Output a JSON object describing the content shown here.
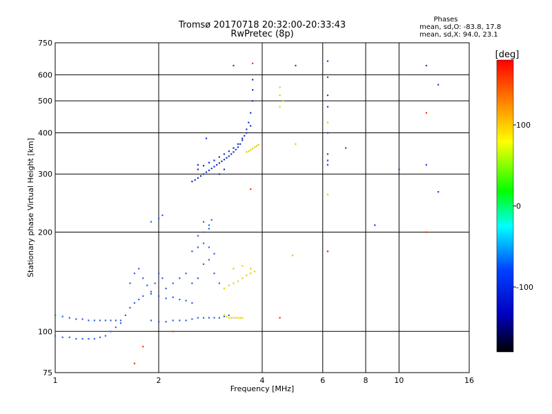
{
  "chart_data": {
    "type": "scatter",
    "title": "Tromsø 20170718 20:32:00-20:33:43",
    "subtitle": "RwPretec (8p)",
    "xlabel": "Frequency [MHz]",
    "ylabel": "Stationary phase Virtual Height [km]",
    "x_scale": "log",
    "y_scale": "log",
    "xlim": [
      1,
      16
    ],
    "ylim": [
      75,
      750
    ],
    "x_ticks": [
      1,
      2,
      4,
      6,
      8,
      10,
      16
    ],
    "y_ticks": [
      75,
      100,
      200,
      300,
      400,
      500,
      600,
      750
    ],
    "x_grid_lines": [
      2,
      4,
      6,
      8,
      10
    ],
    "y_grid_lines": [
      100,
      200,
      300,
      400,
      500,
      600
    ],
    "grid": true,
    "phase_stats": {
      "heading": "Phases",
      "line_o": "mean, sd,O: -83.8, 17.8",
      "line_x": "mean, sd,X:  94.0, 23.1"
    },
    "colorbar": {
      "label": "[deg]",
      "range": [
        -180,
        180
      ],
      "ticks": [
        100,
        0,
        -100
      ],
      "colors": [
        "#ff0000",
        "#ff8000",
        "#ffff00",
        "#00ff00",
        "#00ffff",
        "#0040ff",
        "#0000c0",
        "#000000"
      ]
    },
    "series": [
      {
        "description": "E-layer trace, blue",
        "color": "#3060e0",
        "points": [
          [
            1.0,
            112
          ],
          [
            1.05,
            111
          ],
          [
            1.1,
            110
          ],
          [
            1.15,
            109
          ],
          [
            1.2,
            109
          ],
          [
            1.25,
            108
          ],
          [
            1.3,
            108
          ],
          [
            1.35,
            108
          ],
          [
            1.4,
            108
          ],
          [
            1.45,
            108
          ],
          [
            1.5,
            108
          ],
          [
            1.55,
            108
          ],
          [
            1.0,
            97
          ],
          [
            1.05,
            96
          ],
          [
            1.1,
            96
          ],
          [
            1.15,
            95
          ],
          [
            1.2,
            95
          ],
          [
            1.25,
            95
          ],
          [
            1.3,
            95
          ],
          [
            1.35,
            96
          ],
          [
            1.4,
            97
          ],
          [
            1.45,
            100
          ],
          [
            1.5,
            103
          ],
          [
            1.55,
            106
          ],
          [
            1.6,
            112
          ],
          [
            1.65,
            118
          ],
          [
            1.7,
            122
          ],
          [
            1.75,
            125
          ],
          [
            1.8,
            128
          ],
          [
            1.9,
            130
          ],
          [
            2.0,
            128
          ],
          [
            2.1,
            126
          ],
          [
            2.2,
            127
          ],
          [
            2.3,
            125
          ],
          [
            2.4,
            124
          ],
          [
            2.5,
            122
          ],
          [
            1.9,
            108
          ],
          [
            2.0,
            107
          ],
          [
            2.1,
            107
          ],
          [
            2.2,
            108
          ],
          [
            2.3,
            108
          ],
          [
            2.4,
            108
          ],
          [
            2.5,
            109
          ],
          [
            2.6,
            110
          ],
          [
            2.7,
            110
          ],
          [
            2.8,
            110
          ],
          [
            2.9,
            110
          ],
          [
            3.0,
            110
          ],
          [
            3.1,
            111
          ],
          [
            3.2,
            112
          ],
          [
            1.65,
            140
          ],
          [
            1.7,
            150
          ],
          [
            1.75,
            155
          ],
          [
            1.8,
            145
          ],
          [
            1.85,
            138
          ],
          [
            1.9,
            132
          ],
          [
            1.95,
            140
          ],
          [
            2.0,
            150
          ],
          [
            2.05,
            145
          ],
          [
            2.1,
            135
          ],
          [
            2.2,
            140
          ],
          [
            2.3,
            145
          ],
          [
            2.4,
            150
          ],
          [
            2.5,
            140
          ],
          [
            2.6,
            145
          ],
          [
            2.7,
            160
          ],
          [
            2.8,
            165
          ],
          [
            2.9,
            150
          ],
          [
            3.0,
            140
          ],
          [
            2.5,
            175
          ],
          [
            2.6,
            180
          ],
          [
            2.7,
            185
          ],
          [
            2.8,
            180
          ],
          [
            2.9,
            172
          ],
          [
            2.6,
            195
          ],
          [
            2.7,
            200
          ],
          [
            2.8,
            205
          ],
          [
            1.9,
            215
          ],
          [
            2.0,
            220
          ],
          [
            2.05,
            225
          ],
          [
            2.7,
            215
          ],
          [
            2.8,
            210
          ],
          [
            2.85,
            218
          ]
        ]
      },
      {
        "description": "F-layer trace, blue",
        "color": "#1030c0",
        "points": [
          [
            2.5,
            285
          ],
          [
            2.55,
            288
          ],
          [
            2.6,
            292
          ],
          [
            2.65,
            296
          ],
          [
            2.7,
            300
          ],
          [
            2.75,
            304
          ],
          [
            2.8,
            308
          ],
          [
            2.85,
            312
          ],
          [
            2.9,
            316
          ],
          [
            2.95,
            320
          ],
          [
            3.0,
            324
          ],
          [
            3.05,
            328
          ],
          [
            3.1,
            332
          ],
          [
            3.15,
            336
          ],
          [
            3.2,
            340
          ],
          [
            3.25,
            345
          ],
          [
            3.3,
            350
          ],
          [
            3.35,
            356
          ],
          [
            3.4,
            362
          ],
          [
            3.45,
            370
          ],
          [
            3.5,
            380
          ],
          [
            3.55,
            392
          ],
          [
            3.6,
            410
          ],
          [
            3.65,
            430
          ],
          [
            3.7,
            460
          ],
          [
            3.75,
            500
          ],
          [
            3.75,
            540
          ],
          [
            3.75,
            580
          ],
          [
            2.6,
            310
          ],
          [
            2.7,
            318
          ],
          [
            2.8,
            325
          ],
          [
            2.9,
            330
          ],
          [
            3.0,
            338
          ],
          [
            3.1,
            345
          ],
          [
            3.2,
            352
          ],
          [
            3.3,
            360
          ],
          [
            3.4,
            370
          ],
          [
            3.5,
            385
          ],
          [
            3.6,
            400
          ],
          [
            3.7,
            420
          ],
          [
            2.6,
            320
          ],
          [
            2.75,
            385
          ],
          [
            3.0,
            300
          ],
          [
            3.1,
            310
          ]
        ]
      },
      {
        "description": "X-mode echoes, yellow",
        "color": "#e0d000",
        "points": [
          [
            3.1,
            112
          ],
          [
            3.15,
            111
          ],
          [
            3.2,
            110
          ],
          [
            3.25,
            110
          ],
          [
            3.3,
            110
          ],
          [
            3.35,
            110
          ],
          [
            3.4,
            110
          ],
          [
            3.45,
            110
          ],
          [
            3.5,
            110
          ],
          [
            3.1,
            135
          ],
          [
            3.2,
            138
          ],
          [
            3.3,
            140
          ],
          [
            3.4,
            142
          ],
          [
            3.5,
            145
          ],
          [
            3.6,
            148
          ],
          [
            3.7,
            150
          ],
          [
            3.8,
            152
          ],
          [
            3.3,
            155
          ],
          [
            3.5,
            158
          ],
          [
            3.7,
            155
          ],
          [
            3.6,
            350
          ],
          [
            3.65,
            352
          ],
          [
            3.7,
            355
          ],
          [
            3.75,
            358
          ],
          [
            3.8,
            362
          ],
          [
            3.85,
            365
          ],
          [
            3.9,
            368
          ],
          [
            4.5,
            480
          ],
          [
            4.5,
            520
          ],
          [
            4.5,
            550
          ],
          [
            4.6,
            500
          ],
          [
            4.9,
            170
          ],
          [
            5.0,
            370
          ],
          [
            6.2,
            430
          ],
          [
            6.2,
            260
          ]
        ]
      },
      {
        "description": "Sparse high-frequency echoes",
        "color": "#2040d0",
        "points": [
          [
            3.3,
            640
          ],
          [
            5.0,
            640
          ],
          [
            6.2,
            660
          ],
          [
            6.2,
            590
          ],
          [
            6.2,
            520
          ],
          [
            6.2,
            480
          ],
          [
            6.2,
            400
          ],
          [
            6.2,
            345
          ],
          [
            6.2,
            330
          ],
          [
            6.2,
            320
          ],
          [
            6.2,
            175
          ],
          [
            7.0,
            360
          ],
          [
            8.5,
            210
          ],
          [
            10.0,
            310
          ],
          [
            12.0,
            640
          ],
          [
            13.0,
            560
          ],
          [
            12.0,
            320
          ],
          [
            13.0,
            265
          ]
        ]
      },
      {
        "description": "Scattered warm echoes",
        "color": "#ff3000",
        "points": [
          [
            1.7,
            80
          ],
          [
            3.75,
            650
          ],
          [
            4.5,
            110
          ],
          [
            6.2,
            175
          ],
          [
            12.0,
            460
          ],
          [
            12.0,
            200
          ],
          [
            2.2,
            100
          ],
          [
            1.8,
            90
          ],
          [
            3.7,
            270
          ]
        ]
      }
    ]
  }
}
